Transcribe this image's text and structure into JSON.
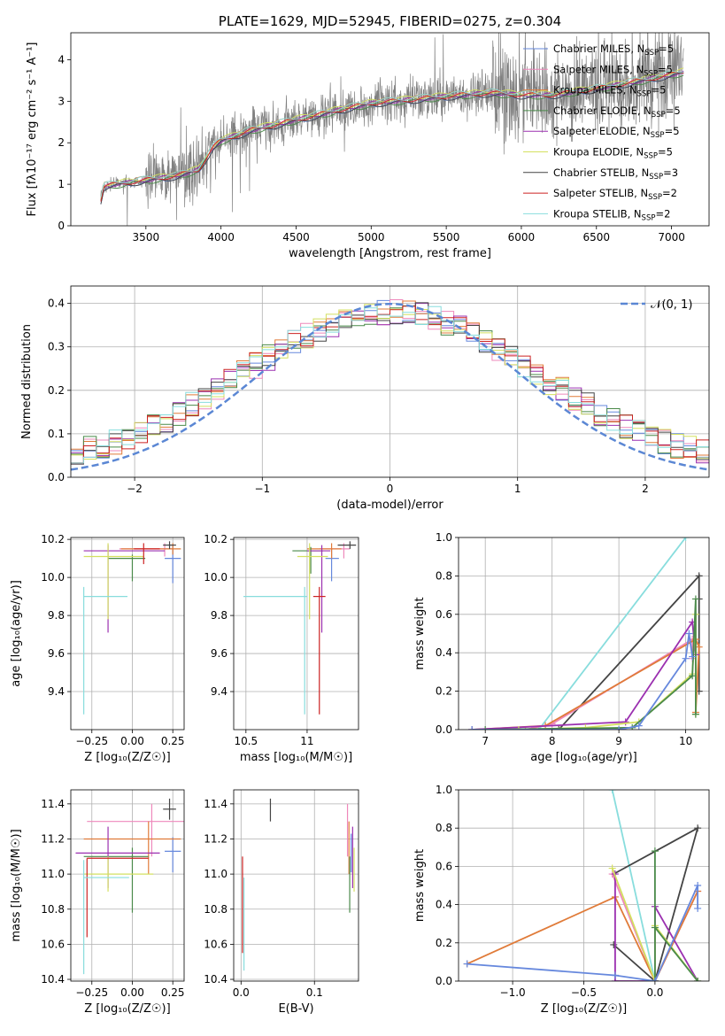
{
  "chart_data": [
    {
      "type": "line",
      "title": "PLATE=1629, MJD=52945, FIBERID=0275, z=0.304",
      "xlabel": "wavelength [Angstrom, rest frame]",
      "ylabel": "Flux [fλ10⁻¹⁷ erg cm⁻² s⁻¹ A⁻¹]",
      "xlim": [
        3000,
        7250
      ],
      "ylim": [
        0,
        4.65
      ],
      "xticks": [
        3500,
        4000,
        4500,
        5000,
        5500,
        6000,
        6500,
        7000
      ],
      "yticks": [
        0,
        1,
        2,
        3,
        4
      ],
      "data_range": [
        3200,
        7080
      ],
      "continuum": [
        [
          3200,
          0.62
        ],
        [
          3220,
          0.95
        ],
        [
          3300,
          1.0
        ],
        [
          3500,
          1.1
        ],
        [
          3700,
          1.2
        ],
        [
          3850,
          1.35
        ],
        [
          3950,
          1.9
        ],
        [
          4000,
          2.05
        ],
        [
          4200,
          2.3
        ],
        [
          4500,
          2.55
        ],
        [
          4800,
          2.8
        ],
        [
          5000,
          2.95
        ],
        [
          5300,
          3.05
        ],
        [
          5600,
          3.15
        ],
        [
          5800,
          3.2
        ],
        [
          6000,
          3.15
        ],
        [
          6200,
          3.15
        ],
        [
          6500,
          3.3
        ],
        [
          6800,
          3.5
        ],
        [
          7080,
          3.7
        ]
      ],
      "legend": [
        {
          "label": "Chabrier MILES, N",
          "sub": "SSP",
          "eq": "=5",
          "color": "#6688dd"
        },
        {
          "label": "Salpeter MILES, N",
          "sub": "SSP",
          "eq": "=5",
          "color": "#ee88bb"
        },
        {
          "label": "Kroupa MILES, N",
          "sub": "SSP",
          "eq": "=5",
          "color": "#e07b39"
        },
        {
          "label": "Chabrier ELODIE, N",
          "sub": "SSP",
          "eq": "=5",
          "color": "#4a8a4a"
        },
        {
          "label": "Salpeter ELODIE, N",
          "sub": "SSP",
          "eq": "=5",
          "color": "#9b30b0"
        },
        {
          "label": "Kroupa ELODIE, N",
          "sub": "SSP",
          "eq": "=5",
          "color": "#d4e060"
        },
        {
          "label": "Chabrier STELIB, N",
          "sub": "SSP",
          "eq": "=3",
          "color": "#444444"
        },
        {
          "label": "Salpeter STELIB, N",
          "sub": "SSP",
          "eq": "=2",
          "color": "#cc2222"
        },
        {
          "label": "Kroupa STELIB, N",
          "sub": "SSP",
          "eq": "=2",
          "color": "#88dddd"
        }
      ]
    },
    {
      "type": "bar",
      "xlabel": "(data-model)/error",
      "ylabel": "Normed distribution",
      "xlim": [
        -2.5,
        2.5
      ],
      "ylim": [
        0,
        0.44
      ],
      "xticks": [
        -2,
        -1,
        0,
        1,
        2
      ],
      "yticks": [
        0.0,
        0.1,
        0.2,
        0.3,
        0.4
      ],
      "bins": 50,
      "normal_curve_label": "𝒩(0, 1)",
      "normal_curve_color": "#5b87d4"
    },
    {
      "type": "scatter",
      "xlabel": "Z [log₁₀(Z/Z☉)]",
      "ylabel": "age  [log₁₀(age/yr)]",
      "xlim": [
        -0.38,
        0.32
      ],
      "ylim": [
        9.2,
        10.21
      ],
      "xticks": [
        -0.25,
        0.0,
        0.25
      ],
      "xticklabels": [
        "−0.25",
        "0.00",
        "0.25"
      ],
      "yticks": [
        9.4,
        9.6,
        9.8,
        10.0,
        10.2
      ],
      "points": [
        {
          "color": "#6688dd",
          "x": 0.25,
          "y": 10.1,
          "xerr": [
            0.05,
            0.05
          ],
          "yerr": [
            0.13,
            0.07
          ]
        },
        {
          "color": "#ee88bb",
          "x": 0.2,
          "y": 10.15,
          "xerr": [
            0.28,
            0.05
          ],
          "yerr": [
            0.04,
            0.03
          ]
        },
        {
          "color": "#e07b39",
          "x": 0.25,
          "y": 10.15,
          "xerr": [
            0.32,
            0.05
          ],
          "yerr": [
            0.03,
            0.03
          ]
        },
        {
          "color": "#4a8a4a",
          "x": 0.0,
          "y": 10.1,
          "xerr": [
            0.15,
            0.08
          ],
          "yerr": [
            0.12,
            0.02
          ]
        },
        {
          "color": "#9b30b0",
          "x": -0.15,
          "y": 10.14,
          "xerr": [
            0.15,
            0.35
          ],
          "yerr": [
            0.43,
            0.03
          ]
        },
        {
          "color": "#d4e060",
          "x": -0.15,
          "y": 10.11,
          "xerr": [
            0.15,
            0.22
          ],
          "yerr": [
            0.33,
            0.07
          ]
        },
        {
          "color": "#444444",
          "x": 0.23,
          "y": 10.17,
          "xerr": [
            0.04,
            0.04
          ],
          "yerr": [
            0.02,
            0.02
          ]
        },
        {
          "color": "#cc2222",
          "x": 0.07,
          "y": 10.15,
          "xerr": [
            0.06,
            0.1
          ],
          "yerr": [
            0.08,
            0.03
          ]
        },
        {
          "color": "#88dddd",
          "x": -0.3,
          "y": 9.9,
          "xerr": [
            0.0,
            0.27
          ],
          "yerr": [
            0.62,
            0.05
          ]
        }
      ]
    },
    {
      "type": "scatter",
      "xlabel": "mass [log₁₀(M/M☉)]",
      "xlim": [
        10.4,
        11.42
      ],
      "ylim": [
        9.2,
        10.21
      ],
      "xticks": [
        10.5,
        11.0
      ],
      "yticks": [
        9.4,
        9.6,
        9.8,
        10.0,
        10.2
      ],
      "points": [
        {
          "color": "#6688dd",
          "x": 11.2,
          "y": 10.1,
          "xerr": [
            0.05,
            0.06
          ],
          "yerr": [
            0.12,
            0.05
          ]
        },
        {
          "color": "#ee88bb",
          "x": 11.3,
          "y": 10.15,
          "xerr": [
            0.2,
            0.05
          ],
          "yerr": [
            0.05,
            0.03
          ]
        },
        {
          "color": "#e07b39",
          "x": 11.2,
          "y": 10.15,
          "xerr": [
            0.2,
            0.08
          ],
          "yerr": [
            0.05,
            0.03
          ]
        },
        {
          "color": "#4a8a4a",
          "x": 11.03,
          "y": 10.14,
          "xerr": [
            0.15,
            0.1
          ],
          "yerr": [
            0.12,
            0.02
          ]
        },
        {
          "color": "#9b30b0",
          "x": 11.12,
          "y": 10.14,
          "xerr": [
            0.12,
            0.07
          ],
          "yerr": [
            0.43,
            0.03
          ]
        },
        {
          "color": "#d4e060",
          "x": 11.02,
          "y": 10.11,
          "xerr": [
            0.1,
            0.15
          ],
          "yerr": [
            0.33,
            0.07
          ]
        },
        {
          "color": "#444444",
          "x": 11.35,
          "y": 10.17,
          "xerr": [
            0.1,
            0.05
          ],
          "yerr": [
            0.02,
            0.02
          ]
        },
        {
          "color": "#cc2222",
          "x": 11.1,
          "y": 9.9,
          "xerr": [
            0.05,
            0.05
          ],
          "yerr": [
            0.62,
            0.05
          ]
        },
        {
          "color": "#88dddd",
          "x": 10.98,
          "y": 9.9,
          "xerr": [
            0.5,
            0.02
          ],
          "yerr": [
            0.62,
            0.05
          ]
        }
      ]
    },
    {
      "type": "line",
      "xlabel": "age  [log₁₀(age/yr)]",
      "ylabel": "mass weight",
      "xlim": [
        6.6,
        10.35
      ],
      "ylim": [
        0,
        1.0
      ],
      "xticks": [
        7,
        8,
        9,
        10
      ],
      "yticks": [
        0.0,
        0.2,
        0.4,
        0.6,
        0.8,
        1.0
      ],
      "series": [
        {
          "color": "#88dddd",
          "x": [
            7.8,
            10.0
          ],
          "y": [
            0.0,
            1.0
          ]
        },
        {
          "color": "#444444",
          "x": [
            7.7,
            8.1,
            10.2,
            10.2,
            10.2
          ],
          "y": [
            0.0,
            0.0,
            0.8,
            0.2,
            0.68
          ]
        },
        {
          "color": "#ee88bb",
          "x": [
            7.6,
            8.0,
            10.1,
            10.1
          ],
          "y": [
            0.0,
            0.03,
            0.47,
            0.37
          ]
        },
        {
          "color": "#e07b39",
          "x": [
            6.8,
            7.9,
            10.15,
            10.2,
            10.15
          ],
          "y": [
            0.0,
            0.02,
            0.47,
            0.43,
            0.09
          ]
        },
        {
          "color": "#9b30b0",
          "x": [
            6.8,
            9.1,
            10.1,
            10.15
          ],
          "y": [
            0.0,
            0.04,
            0.56,
            0.39
          ]
        },
        {
          "color": "#d4e060",
          "x": [
            7.5,
            8.5,
            9.3,
            10.1,
            10.15,
            10.15
          ],
          "y": [
            0.0,
            0.01,
            0.04,
            0.29,
            0.6,
            0.08
          ]
        },
        {
          "color": "#4a8a4a",
          "x": [
            7.0,
            9.2,
            10.1,
            10.15,
            10.15
          ],
          "y": [
            0.0,
            0.01,
            0.28,
            0.68,
            0.08
          ]
        },
        {
          "color": "#6688dd",
          "x": [
            6.8,
            9.0,
            9.3,
            10.0,
            10.05,
            10.1
          ],
          "y": [
            0.0,
            0.0,
            0.02,
            0.37,
            0.5,
            0.38
          ]
        }
      ]
    },
    {
      "type": "scatter",
      "xlabel": "Z [log₁₀(Z/Z☉)]",
      "ylabel": "mass [log₁₀(M/M☉)]",
      "xlim": [
        -0.38,
        0.32
      ],
      "ylim": [
        10.39,
        11.48
      ],
      "xticks": [
        -0.25,
        0.0,
        0.25
      ],
      "xticklabels": [
        "−0.25",
        "0.00",
        "0.25"
      ],
      "yticks": [
        10.4,
        10.6,
        10.8,
        11.0,
        11.2,
        11.4
      ],
      "points": [
        {
          "color": "#6688dd",
          "x": 0.25,
          "y": 11.13,
          "xerr": [
            0.05,
            0.05
          ],
          "yerr": [
            0.12,
            0.08
          ]
        },
        {
          "color": "#ee88bb",
          "x": 0.12,
          "y": 11.3,
          "xerr": [
            0.4,
            0.2
          ],
          "yerr": [
            0.2,
            0.1
          ]
        },
        {
          "color": "#e07b39",
          "x": 0.1,
          "y": 11.2,
          "xerr": [
            0.4,
            0.2
          ],
          "yerr": [
            0.2,
            0.1
          ]
        },
        {
          "color": "#4a8a4a",
          "x": 0.0,
          "y": 11.1,
          "xerr": [
            0.3,
            0.1
          ],
          "yerr": [
            0.32,
            0.05
          ]
        },
        {
          "color": "#9b30b0",
          "x": -0.15,
          "y": 11.12,
          "xerr": [
            0.2,
            0.32
          ],
          "yerr": [
            0.2,
            0.15
          ]
        },
        {
          "color": "#d4e060",
          "x": -0.15,
          "y": 11.0,
          "xerr": [
            0.15,
            0.28
          ],
          "yerr": [
            0.1,
            0.1
          ]
        },
        {
          "color": "#444444",
          "x": 0.23,
          "y": 11.37,
          "xerr": [
            0.04,
            0.04
          ],
          "yerr": [
            0.06,
            0.06
          ]
        },
        {
          "color": "#cc2222",
          "x": -0.28,
          "y": 11.09,
          "xerr": [
            0.0,
            0.38
          ],
          "yerr": [
            0.45,
            0.0
          ]
        },
        {
          "color": "#88dddd",
          "x": -0.3,
          "y": 10.98,
          "xerr": [
            0.0,
            0.28
          ],
          "yerr": [
            0.55,
            0.1
          ]
        }
      ]
    },
    {
      "type": "scatter",
      "xlabel": "E(B-V)",
      "xlim": [
        -0.01,
        0.16
      ],
      "ylim": [
        10.39,
        11.48
      ],
      "xticks": [
        0.0,
        0.1
      ],
      "xticklabels": [
        "0.0",
        "0.1"
      ],
      "yticks": [
        10.4,
        10.6,
        10.8,
        11.0,
        11.2,
        11.4
      ],
      "points": [
        {
          "color": "#6688dd",
          "x": 0.15,
          "y": 11.13,
          "xerr": [
            0.0,
            0.0
          ],
          "yerr": [
            0.12,
            0.1
          ]
        },
        {
          "color": "#ee88bb",
          "x": 0.145,
          "y": 11.3,
          "xerr": [
            0.0,
            0.0
          ],
          "yerr": [
            0.2,
            0.1
          ]
        },
        {
          "color": "#e07b39",
          "x": 0.147,
          "y": 11.2,
          "xerr": [
            0.0,
            0.0
          ],
          "yerr": [
            0.2,
            0.1
          ]
        },
        {
          "color": "#4a8a4a",
          "x": 0.148,
          "y": 11.0,
          "xerr": [
            0.0,
            0.0
          ],
          "yerr": [
            0.22,
            0.1
          ]
        },
        {
          "color": "#9b30b0",
          "x": 0.152,
          "y": 11.12,
          "xerr": [
            0.0,
            0.0
          ],
          "yerr": [
            0.2,
            0.15
          ]
        },
        {
          "color": "#d4e060",
          "x": 0.154,
          "y": 11.05,
          "xerr": [
            0.0,
            0.0
          ],
          "yerr": [
            0.15,
            0.1
          ]
        },
        {
          "color": "#444444",
          "x": 0.04,
          "y": 11.37,
          "xerr": [
            0.0,
            0.0
          ],
          "yerr": [
            0.07,
            0.06
          ]
        },
        {
          "color": "#cc2222",
          "x": 0.002,
          "y": 10.85,
          "xerr": [
            0.0,
            0.0
          ],
          "yerr": [
            0.3,
            0.25
          ]
        },
        {
          "color": "#88dddd",
          "x": 0.004,
          "y": 10.7,
          "xerr": [
            0.0,
            0.0
          ],
          "yerr": [
            0.25,
            0.28
          ]
        }
      ]
    },
    {
      "type": "line",
      "xlabel": "Z [log₁₀(Z/Z☉)]",
      "ylabel": "mass weight",
      "xlim": [
        -1.38,
        0.38
      ],
      "ylim": [
        0,
        1.0
      ],
      "xticks": [
        -1.0,
        -0.5,
        0.0
      ],
      "xticklabels": [
        "−1.0",
        "−0.5",
        "0.0"
      ],
      "yticks": [
        0.0,
        0.2,
        0.4,
        0.6,
        0.8,
        1.0
      ],
      "series": [
        {
          "color": "#88dddd",
          "x": [
            -0.3,
            0.0
          ],
          "y": [
            1.0,
            0.0
          ]
        },
        {
          "color": "#444444",
          "x": [
            -0.29,
            0.0,
            0.3,
            -0.29
          ],
          "y": [
            0.19,
            0.0,
            0.8,
            0.56
          ]
        },
        {
          "color": "#ee88bb",
          "x": [
            -0.3,
            0.0,
            0.3
          ],
          "y": [
            0.56,
            0.0,
            0.47
          ]
        },
        {
          "color": "#e07b39",
          "x": [
            -1.32,
            -0.28,
            0.0,
            0.3
          ],
          "y": [
            0.09,
            0.44,
            0.0,
            0.47
          ]
        },
        {
          "color": "#9b30b0",
          "x": [
            -0.28,
            -0.28,
            0.0,
            0.0,
            0.3
          ],
          "y": [
            0.56,
            0.0,
            0.0,
            0.39,
            0.0
          ]
        },
        {
          "color": "#d4e060",
          "x": [
            -0.3,
            0.0,
            0.0,
            0.3
          ],
          "y": [
            0.59,
            0.0,
            0.29,
            0.0
          ]
        },
        {
          "color": "#4a8a4a",
          "x": [
            0.0,
            0.0,
            0.0,
            0.3
          ],
          "y": [
            0.68,
            0.0,
            0.28,
            0.0
          ]
        },
        {
          "color": "#6688dd",
          "x": [
            -1.32,
            -0.28,
            0.0,
            0.3,
            0.3
          ],
          "y": [
            0.09,
            0.03,
            0.0,
            0.5,
            0.38
          ]
        }
      ]
    }
  ]
}
